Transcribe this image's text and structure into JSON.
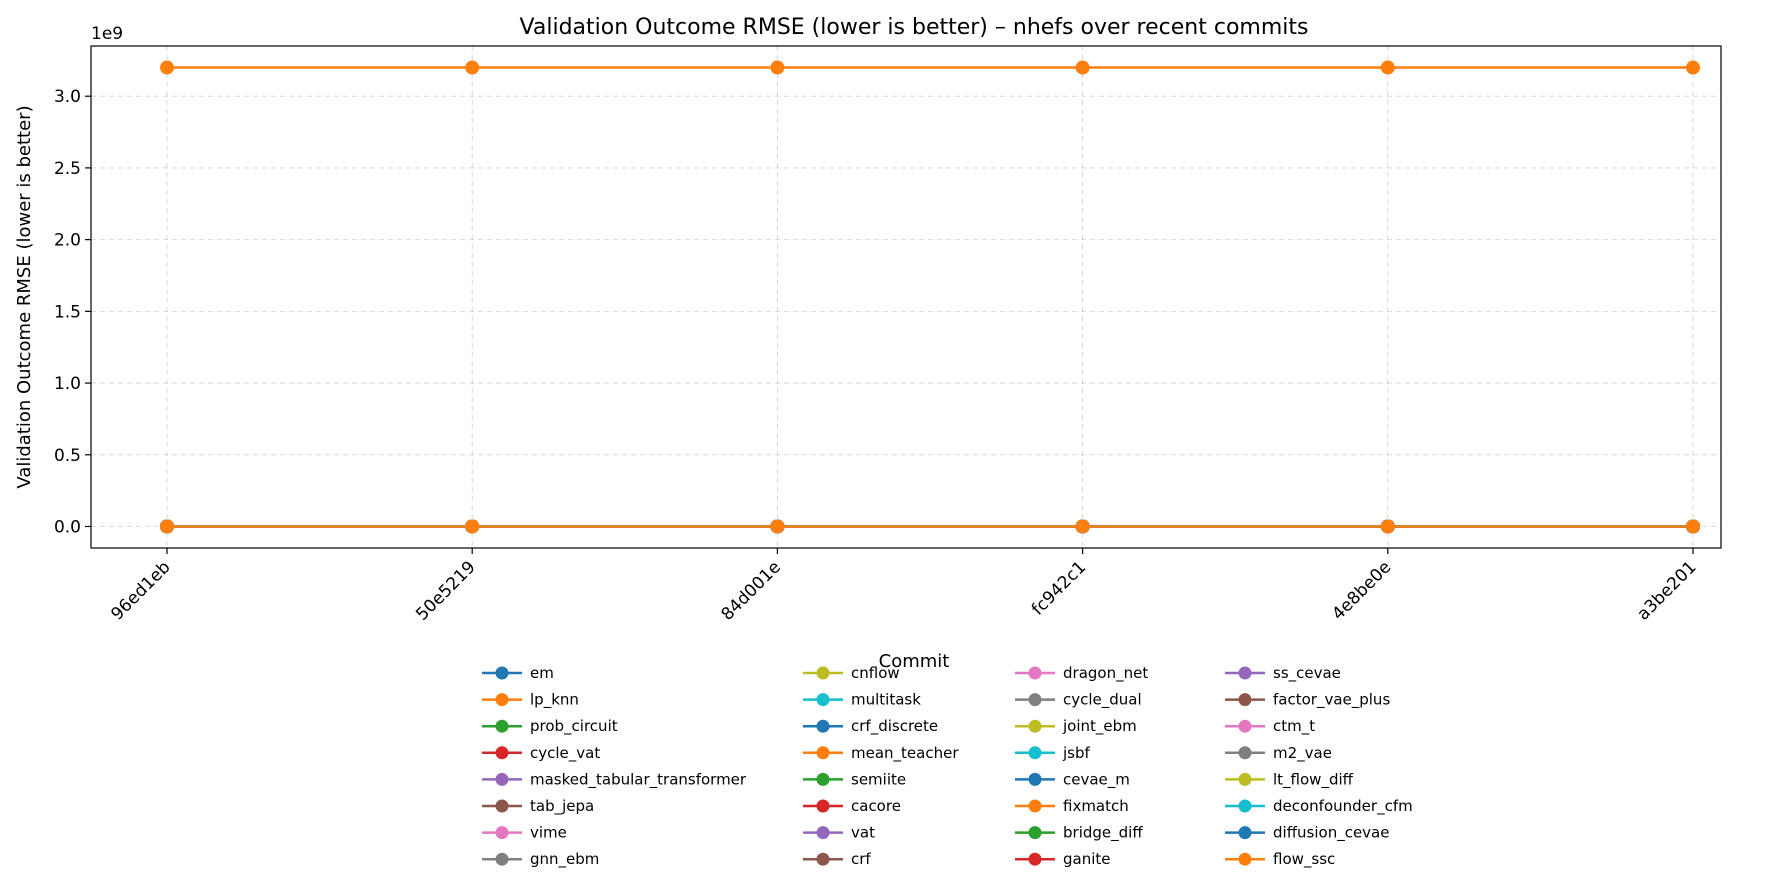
{
  "chart_data": {
    "type": "line",
    "title": "Validation Outcome RMSE (lower is better) – nhefs over recent commits",
    "xlabel": "Commit",
    "ylabel": "Validation Outcome RMSE (lower is better)",
    "y_offset_text": "1e9",
    "y_scale": 1000000000,
    "ylim": [
      -150000000,
      3350000000
    ],
    "y_ticks": [
      0,
      500000000,
      1000000000,
      1500000000,
      2000000000,
      2500000000,
      3000000000
    ],
    "y_tick_labels": [
      "0.0",
      "0.5",
      "1.0",
      "1.5",
      "2.0",
      "2.5",
      "3.0"
    ],
    "grid": true,
    "legend_position": "below plot, 4 columns",
    "categories": [
      "96ed1eb",
      "50e5219",
      "84d001e",
      "fc942c1",
      "4e8be0e",
      "a3be201"
    ],
    "series": [
      {
        "name": "em",
        "color": "#1f77b4",
        "values": [
          0,
          0,
          0,
          0,
          0,
          0
        ]
      },
      {
        "name": "lp_knn",
        "color": "#ff7f0e",
        "values": [
          3200000000,
          3200000000,
          3200000000,
          3200000000,
          3200000000,
          3200000000
        ]
      },
      {
        "name": "prob_circuit",
        "color": "#2ca02c",
        "values": [
          0,
          0,
          0,
          0,
          0,
          0
        ]
      },
      {
        "name": "cycle_vat",
        "color": "#d62728",
        "values": [
          0,
          0,
          0,
          0,
          0,
          0
        ]
      },
      {
        "name": "masked_tabular_transformer",
        "color": "#9467bd",
        "values": [
          0,
          0,
          0,
          0,
          0,
          0
        ]
      },
      {
        "name": "tab_jepa",
        "color": "#8c564b",
        "values": [
          0,
          0,
          0,
          0,
          0,
          0
        ]
      },
      {
        "name": "vime",
        "color": "#e377c2",
        "values": [
          0,
          0,
          0,
          0,
          0,
          0
        ]
      },
      {
        "name": "gnn_ebm",
        "color": "#7f7f7f",
        "values": [
          0,
          0,
          0,
          0,
          0,
          0
        ]
      },
      {
        "name": "cnflow",
        "color": "#bcbd22",
        "values": [
          0,
          0,
          0,
          0,
          0,
          0
        ]
      },
      {
        "name": "multitask",
        "color": "#17becf",
        "values": [
          0,
          0,
          0,
          0,
          0,
          0
        ]
      },
      {
        "name": "crf_discrete",
        "color": "#1f77b4",
        "values": [
          0,
          0,
          0,
          0,
          0,
          0
        ]
      },
      {
        "name": "mean_teacher",
        "color": "#ff7f0e",
        "values": [
          0,
          0,
          0,
          0,
          0,
          0
        ]
      },
      {
        "name": "semiite",
        "color": "#2ca02c",
        "values": [
          0,
          0,
          0,
          0,
          0,
          0
        ]
      },
      {
        "name": "cacore",
        "color": "#d62728",
        "values": [
          0,
          0,
          0,
          0,
          0,
          0
        ]
      },
      {
        "name": "vat",
        "color": "#9467bd",
        "values": [
          0,
          0,
          0,
          0,
          0,
          0
        ]
      },
      {
        "name": "crf",
        "color": "#8c564b",
        "values": [
          0,
          0,
          0,
          0,
          0,
          0
        ]
      },
      {
        "name": "dragon_net",
        "color": "#e377c2",
        "values": [
          0,
          0,
          0,
          0,
          0,
          0
        ]
      },
      {
        "name": "cycle_dual",
        "color": "#7f7f7f",
        "values": [
          0,
          0,
          0,
          0,
          0,
          0
        ]
      },
      {
        "name": "joint_ebm",
        "color": "#bcbd22",
        "values": [
          0,
          0,
          0,
          0,
          0,
          0
        ]
      },
      {
        "name": "jsbf",
        "color": "#17becf",
        "values": [
          0,
          0,
          0,
          0,
          0,
          0
        ]
      },
      {
        "name": "cevae_m",
        "color": "#1f77b4",
        "values": [
          0,
          0,
          0,
          0,
          0,
          0
        ]
      },
      {
        "name": "fixmatch",
        "color": "#ff7f0e",
        "values": [
          0,
          0,
          0,
          0,
          0,
          0
        ]
      },
      {
        "name": "bridge_diff",
        "color": "#2ca02c",
        "values": [
          0,
          0,
          0,
          0,
          0,
          0
        ]
      },
      {
        "name": "ganite",
        "color": "#d62728",
        "values": [
          0,
          0,
          0,
          0,
          0,
          0
        ]
      },
      {
        "name": "ss_cevae",
        "color": "#9467bd",
        "values": [
          0,
          0,
          0,
          0,
          0,
          0
        ]
      },
      {
        "name": "factor_vae_plus",
        "color": "#8c564b",
        "values": [
          0,
          0,
          0,
          0,
          0,
          0
        ]
      },
      {
        "name": "ctm_t",
        "color": "#e377c2",
        "values": [
          0,
          0,
          0,
          0,
          0,
          0
        ]
      },
      {
        "name": "m2_vae",
        "color": "#7f7f7f",
        "values": [
          0,
          0,
          0,
          0,
          0,
          0
        ]
      },
      {
        "name": "lt_flow_diff",
        "color": "#bcbd22",
        "values": [
          0,
          0,
          0,
          0,
          0,
          0
        ]
      },
      {
        "name": "deconfounder_cfm",
        "color": "#17becf",
        "values": [
          0,
          0,
          0,
          0,
          0,
          0
        ]
      },
      {
        "name": "diffusion_cevae",
        "color": "#1f77b4",
        "values": [
          0,
          0,
          0,
          0,
          0,
          0
        ]
      },
      {
        "name": "flow_ssc",
        "color": "#ff7f0e",
        "values": [
          0,
          0,
          0,
          0,
          0,
          0
        ]
      }
    ]
  }
}
